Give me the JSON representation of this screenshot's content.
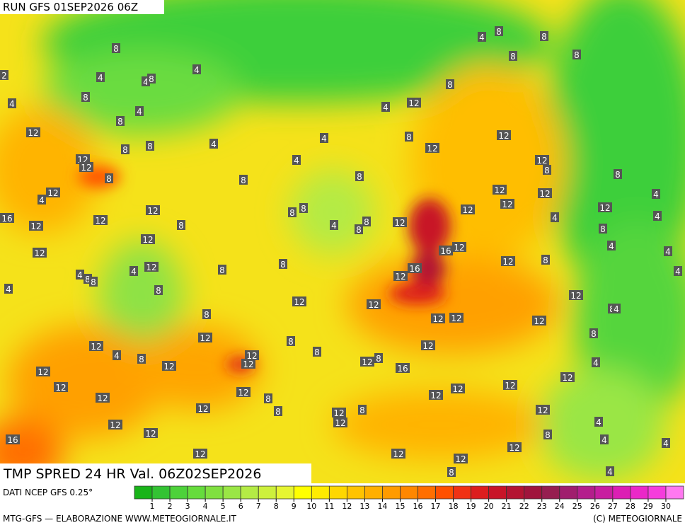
{
  "header": {
    "run": "RUN GFS 01SEP2026 06Z"
  },
  "title": "TMP SPRED 24 HR Val. 06Z02SEP2026",
  "source": "DATI NCEP GFS 0.25°",
  "footer": {
    "left": "MTG-GFS — ELABORAZIONE WWW.METEOGIORNALE.IT",
    "right": "(C) METEOGIORNALE"
  },
  "legend": {
    "ticks": [
      1,
      2,
      3,
      4,
      5,
      6,
      7,
      8,
      9,
      10,
      11,
      12,
      13,
      14,
      15,
      16,
      17,
      18,
      19,
      20,
      21,
      22,
      23,
      24,
      25,
      26,
      27,
      28,
      29,
      30
    ],
    "colors": [
      "#19b419",
      "#33c333",
      "#4dd23a",
      "#66dc3c",
      "#80e040",
      "#9ae645",
      "#b4eb45",
      "#cdf03c",
      "#e6f532",
      "#ffff00",
      "#ffeb00",
      "#ffd700",
      "#ffc300",
      "#ffaf00",
      "#ff9b00",
      "#ff8700",
      "#ff6e00",
      "#ff5000",
      "#f03214",
      "#dc1e1e",
      "#c81428",
      "#b41432",
      "#a0143c",
      "#961e50",
      "#a01e6e",
      "#b41e8c",
      "#c81ea0",
      "#dc1eb4",
      "#eb28c8",
      "#f53cdc",
      "#ff78f0"
    ]
  },
  "map": {
    "contour_labels": [
      8,
      4,
      4,
      8,
      8,
      4,
      4,
      8,
      12,
      8,
      8,
      12,
      12,
      8,
      12,
      4,
      16,
      12,
      12,
      12,
      8,
      12,
      12,
      4,
      8,
      8,
      4,
      12,
      4,
      8,
      8,
      12,
      12,
      4,
      8,
      12,
      12,
      12,
      12,
      12,
      12,
      12,
      16,
      12,
      4,
      4,
      8,
      8,
      8,
      12,
      8,
      12,
      12,
      12,
      8,
      8,
      8,
      4,
      4,
      8,
      8,
      8,
      4,
      8,
      8,
      12,
      4,
      12,
      8,
      12,
      8,
      4,
      8,
      8,
      8,
      8,
      12,
      12,
      8,
      8,
      12,
      12,
      12,
      12,
      12,
      4,
      4,
      4,
      8,
      4,
      4,
      8,
      12,
      12,
      16,
      16,
      12,
      12,
      12,
      12,
      12,
      12,
      8,
      4,
      8,
      12,
      16,
      12,
      8,
      4,
      12,
      12,
      12,
      12,
      8,
      12,
      12,
      12,
      4,
      8,
      4,
      4,
      12,
      12,
      12,
      8,
      4,
      4,
      2
    ]
  }
}
